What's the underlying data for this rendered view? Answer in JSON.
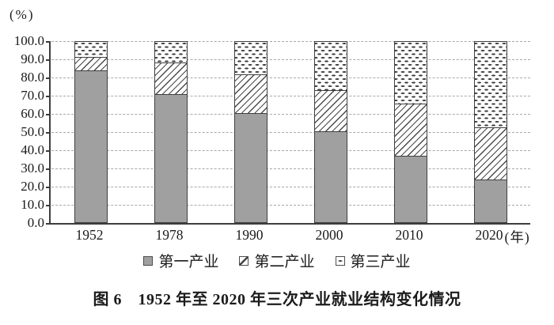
{
  "unit_label": "(%)",
  "chart_data": {
    "type": "bar",
    "stacked": true,
    "title": "图 6　1952 年至 2020 年三次产业就业结构变化情况",
    "y_unit": "(%)",
    "x_axis_suffix": "(年)",
    "categories": [
      "1952",
      "1978",
      "1990",
      "2000",
      "2010",
      "2020"
    ],
    "yticks": [
      "100.0",
      "90.0",
      "80.0",
      "70.0",
      "60.0",
      "50.0",
      "40.0",
      "30.0",
      "20.0",
      "10.0",
      "0.0"
    ],
    "ylim": [
      0,
      100
    ],
    "grid": "horizontal-dashed",
    "legend_position": "bottom",
    "series": [
      {
        "name": "第一产业",
        "pattern": "solid-gray",
        "color": "#a0a0a0",
        "values": [
          83.5,
          70.5,
          60.1,
          50.0,
          36.7,
          23.6
        ]
      },
      {
        "name": "第二产业",
        "pattern": "diagonal-hatch",
        "color": "#ffffff",
        "values": [
          7.4,
          17.3,
          21.4,
          22.5,
          28.7,
          28.7
        ]
      },
      {
        "name": "第三产业",
        "pattern": "horizontal-dashes",
        "color": "#ffffff",
        "values": [
          9.1,
          12.2,
          18.5,
          27.5,
          34.6,
          47.7
        ]
      }
    ]
  }
}
